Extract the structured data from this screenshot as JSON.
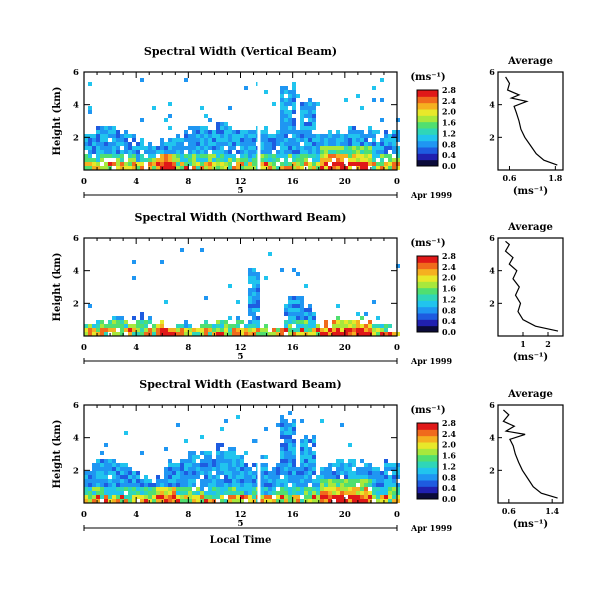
{
  "chart_data": [
    {
      "type": "heatmap",
      "title": "Spectral Width (Vertical Beam)",
      "ylabel": "Height (km)",
      "xlabel": "",
      "x_ticks": [
        "0",
        "4",
        "8",
        "12",
        "16",
        "20",
        "0"
      ],
      "y_ticks": [
        "2",
        "4",
        "6"
      ],
      "xlim": [
        0,
        24
      ],
      "ylim": [
        0,
        6
      ],
      "date_marker": "5",
      "date_label": "Apr 1999",
      "colorbar": {
        "unit": "(ms⁻¹)",
        "ticks": [
          "0.0",
          "0.4",
          "0.8",
          "1.2",
          "1.6",
          "2.0",
          "2.4",
          "2.8"
        ]
      },
      "average": {
        "title": "Average",
        "xlabel": "(ms⁻¹)",
        "x_ticks": [
          "0.6",
          "1.8"
        ],
        "y_ticks": [
          "2",
          "4",
          "6"
        ],
        "xlim": [
          0.3,
          2.0
        ],
        "ylim": [
          0,
          6
        ],
        "profile": [
          [
            1.85,
            0.3
          ],
          [
            1.5,
            0.6
          ],
          [
            1.3,
            1.0
          ],
          [
            1.15,
            1.5
          ],
          [
            1.0,
            2.0
          ],
          [
            0.9,
            2.5
          ],
          [
            0.85,
            3.0
          ],
          [
            0.78,
            3.5
          ],
          [
            0.72,
            3.9
          ],
          [
            1.05,
            4.2
          ],
          [
            0.65,
            4.4
          ],
          [
            0.85,
            4.6
          ],
          [
            0.55,
            4.9
          ],
          [
            0.6,
            5.3
          ],
          [
            0.5,
            5.7
          ]
        ]
      }
    },
    {
      "type": "heatmap",
      "title": "Spectral Width (Northward Beam)",
      "ylabel": "Height (km)",
      "xlabel": "",
      "x_ticks": [
        "0",
        "4",
        "8",
        "12",
        "16",
        "20",
        "0"
      ],
      "y_ticks": [
        "2",
        "4",
        "6"
      ],
      "xlim": [
        0,
        24
      ],
      "ylim": [
        0,
        6
      ],
      "date_marker": "5",
      "date_label": "Apr 1999",
      "colorbar": {
        "unit": "(ms⁻¹)",
        "ticks": [
          "0.0",
          "0.4",
          "0.8",
          "1.2",
          "1.6",
          "2.0",
          "2.4",
          "2.8"
        ]
      },
      "average": {
        "title": "Average",
        "xlabel": "(ms⁻¹)",
        "x_ticks": [
          "1",
          "2"
        ],
        "y_ticks": [
          "2",
          "4",
          "6"
        ],
        "xlim": [
          0,
          2.6
        ],
        "ylim": [
          0,
          6
        ],
        "profile": [
          [
            2.4,
            0.3
          ],
          [
            1.5,
            0.6
          ],
          [
            1.0,
            1.0
          ],
          [
            0.8,
            1.5
          ],
          [
            0.9,
            2.0
          ],
          [
            0.7,
            2.5
          ],
          [
            0.85,
            3.0
          ],
          [
            0.6,
            3.5
          ],
          [
            0.75,
            4.0
          ],
          [
            0.45,
            4.4
          ],
          [
            0.6,
            4.8
          ],
          [
            0.3,
            5.2
          ],
          [
            0.45,
            5.6
          ],
          [
            0.3,
            5.8
          ]
        ]
      }
    },
    {
      "type": "heatmap",
      "title": "Spectral Width (Eastward Beam)",
      "ylabel": "Height (km)",
      "xlabel": "Local Time",
      "x_ticks": [
        "0",
        "4",
        "8",
        "12",
        "16",
        "20",
        "0"
      ],
      "y_ticks": [
        "2",
        "4",
        "6"
      ],
      "xlim": [
        0,
        24
      ],
      "ylim": [
        0,
        6
      ],
      "date_marker": "5",
      "date_label": "Apr 1999",
      "colorbar": {
        "unit": "(ms⁻¹)",
        "ticks": [
          "0.0",
          "0.4",
          "0.8",
          "1.2",
          "1.6",
          "2.0",
          "2.4",
          "2.8"
        ]
      },
      "average": {
        "title": "Average",
        "xlabel": "(ms⁻¹)",
        "x_ticks": [
          "0.6",
          "1.4"
        ],
        "y_ticks": [
          "2",
          "4",
          "6"
        ],
        "xlim": [
          0.4,
          1.6
        ],
        "ylim": [
          0,
          6
        ],
        "profile": [
          [
            1.5,
            0.3
          ],
          [
            1.2,
            0.6
          ],
          [
            1.05,
            1.0
          ],
          [
            0.95,
            1.5
          ],
          [
            0.85,
            2.0
          ],
          [
            0.78,
            2.5
          ],
          [
            0.72,
            3.0
          ],
          [
            0.68,
            3.5
          ],
          [
            0.62,
            3.9
          ],
          [
            0.9,
            4.2
          ],
          [
            0.55,
            4.4
          ],
          [
            0.7,
            4.7
          ],
          [
            0.5,
            5.0
          ],
          [
            0.6,
            5.4
          ],
          [
            0.5,
            5.7
          ]
        ]
      }
    }
  ]
}
